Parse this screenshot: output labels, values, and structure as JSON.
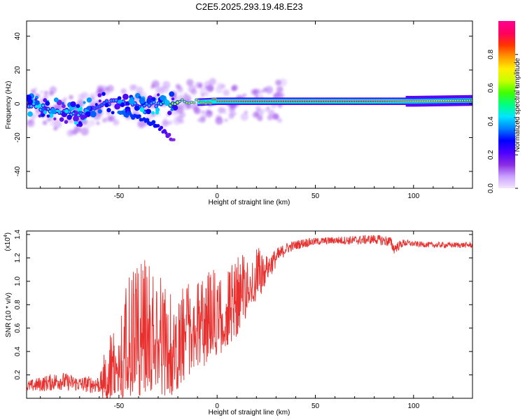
{
  "title": "C2E5.2025.293.19.48.E23",
  "colorbar": {
    "label": "Normalized spectral amplitude",
    "ticks": [
      "0.0",
      "0.2",
      "0.4",
      "0.6",
      "0.8"
    ],
    "tick_values": [
      0.0,
      0.2,
      0.4,
      0.6,
      0.8
    ],
    "range": [
      0,
      1
    ],
    "colormap": [
      "#f4e6ff",
      "#c9a0ff",
      "#8a2be2",
      "#4b00ff",
      "#0000ff",
      "#0080ff",
      "#00e5ff",
      "#00ff80",
      "#40ff00",
      "#c8ff00",
      "#ffee00",
      "#ff9900",
      "#ff3300",
      "#ff0060",
      "#ff0090"
    ]
  },
  "chart_data": [
    {
      "type": "heatmap",
      "title": "C2E5.2025.293.19.48.E23",
      "xlabel": "Height of straight line (km)",
      "ylabel": "Frequency (Hz)",
      "xlim": [
        -97,
        130
      ],
      "ylim": [
        -50,
        49
      ],
      "xticks": [
        -50,
        0,
        50,
        100
      ],
      "yticks": [
        -40,
        -20,
        0,
        20,
        40
      ],
      "xtick_labels": [
        "-50",
        "0",
        "50",
        "100"
      ],
      "ytick_labels": [
        "-40",
        "-20",
        "0",
        "20",
        "40"
      ],
      "ridge": {
        "description": "dominant frequency ridge",
        "x": [
          -97,
          -90,
          -80,
          -70,
          -65,
          -58,
          -50,
          -40,
          -30,
          -25,
          -20,
          -10,
          0,
          20,
          40,
          60,
          80,
          100,
          130
        ],
        "y": [
          0,
          -2,
          -4,
          -7,
          -3,
          0,
          1,
          -1,
          0,
          0,
          1,
          1,
          1.5,
          1.5,
          1.5,
          1.5,
          1.5,
          1.5,
          2
        ],
        "amplitude": [
          0.4,
          0.45,
          0.45,
          0.45,
          0.35,
          0.35,
          0.4,
          0.4,
          0.4,
          0.6,
          0.65,
          0.75,
          0.85,
          0.92,
          0.95,
          0.95,
          0.92,
          0.75,
          0.65
        ]
      },
      "secondary_branch": {
        "x": [
          -50,
          -40,
          -32,
          -26,
          -22
        ],
        "y": [
          -5,
          -8,
          -12,
          -17,
          -22
        ],
        "amplitude": [
          0.35,
          0.3,
          0.3,
          0.2,
          0.15
        ]
      }
    },
    {
      "type": "line",
      "xlabel": "Height of straight line (km)",
      "ylabel": "SNR (10 * v/v)",
      "y_multiplier": "(x10",
      "y_multiplier_exp": "4",
      "y_multiplier_close": ")",
      "xlim": [
        -97,
        130
      ],
      "ylim": [
        0,
        1.43
      ],
      "xticks": [
        -50,
        0,
        50,
        100
      ],
      "yticks": [
        0.2,
        0.4,
        0.6,
        0.8,
        1.0,
        1.2,
        1.4
      ],
      "xtick_labels": [
        "-50",
        "0",
        "50",
        "100"
      ],
      "ytick_labels": [
        "0.2",
        "0.4",
        "0.6",
        "0.8",
        "1.0",
        "1.2",
        "1.4"
      ],
      "series": [
        {
          "name": "SNR",
          "color": "#e8302e",
          "x": [
            -97,
            -90,
            -80,
            -70,
            -60,
            -55,
            -50,
            -45,
            -40,
            -35,
            -30,
            -25,
            -22,
            -20,
            -18,
            -15,
            -10,
            -5,
            0,
            5,
            10,
            15,
            20,
            25,
            30,
            35,
            40,
            45,
            50,
            60,
            70,
            80,
            88,
            90,
            95,
            100,
            110,
            120,
            130
          ],
          "y": [
            0.1,
            0.12,
            0.15,
            0.12,
            0.12,
            0.18,
            0.25,
            0.4,
            0.45,
            0.5,
            0.45,
            0.4,
            0.3,
            0.35,
            0.45,
            0.5,
            0.55,
            0.6,
            0.65,
            0.7,
            0.8,
            0.9,
            1.0,
            1.1,
            1.2,
            1.28,
            1.31,
            1.33,
            1.34,
            1.35,
            1.35,
            1.36,
            1.34,
            1.28,
            1.33,
            1.32,
            1.31,
            1.31,
            1.31
          ],
          "spread": [
            0.06,
            0.08,
            0.1,
            0.08,
            0.1,
            0.25,
            0.35,
            0.45,
            0.5,
            0.5,
            0.45,
            0.45,
            0.3,
            0.3,
            0.35,
            0.4,
            0.35,
            0.35,
            0.35,
            0.3,
            0.3,
            0.25,
            0.2,
            0.15,
            0.1,
            0.06,
            0.05,
            0.05,
            0.04,
            0.04,
            0.05,
            0.05,
            0.06,
            0.06,
            0.04,
            0.03,
            0.03,
            0.03,
            0.03
          ]
        }
      ]
    }
  ]
}
